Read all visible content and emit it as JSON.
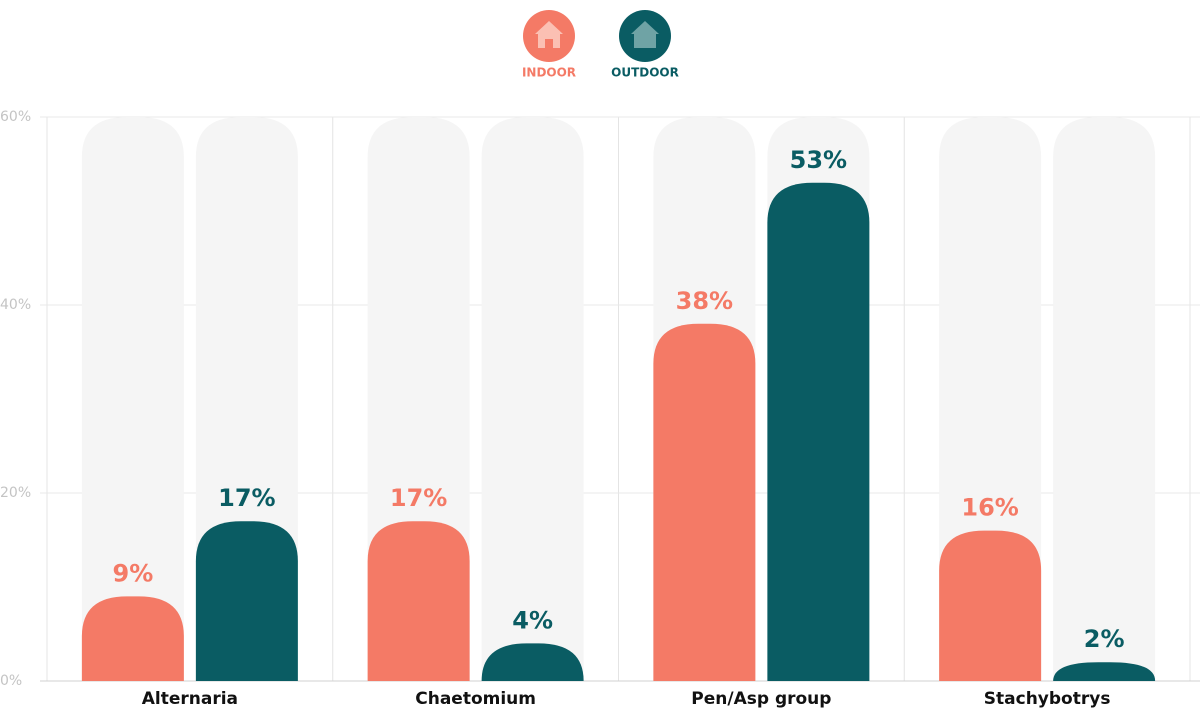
{
  "chart_data": {
    "type": "bar",
    "categories": [
      "Alternaria",
      "Chaetomium",
      "Pen/Asp group",
      "Stachybotrys"
    ],
    "series": [
      {
        "name": "INDOOR",
        "color": "#f47a66",
        "values": [
          9,
          17,
          38,
          16
        ],
        "value_labels": [
          "9%",
          "17%",
          "38%",
          "16%"
        ]
      },
      {
        "name": "OUTDOOR",
        "color": "#0a5c63",
        "values": [
          17,
          4,
          53,
          2
        ],
        "value_labels": [
          "17%",
          "4%",
          "53%",
          "2%"
        ]
      }
    ],
    "ylim": [
      0,
      60
    ],
    "yticks": [
      {
        "value": 0,
        "label": "0%"
      },
      {
        "value": 20,
        "label": "20%"
      },
      {
        "value": 40,
        "label": "40%"
      },
      {
        "value": 60,
        "label": "60%"
      }
    ],
    "grid": true
  }
}
